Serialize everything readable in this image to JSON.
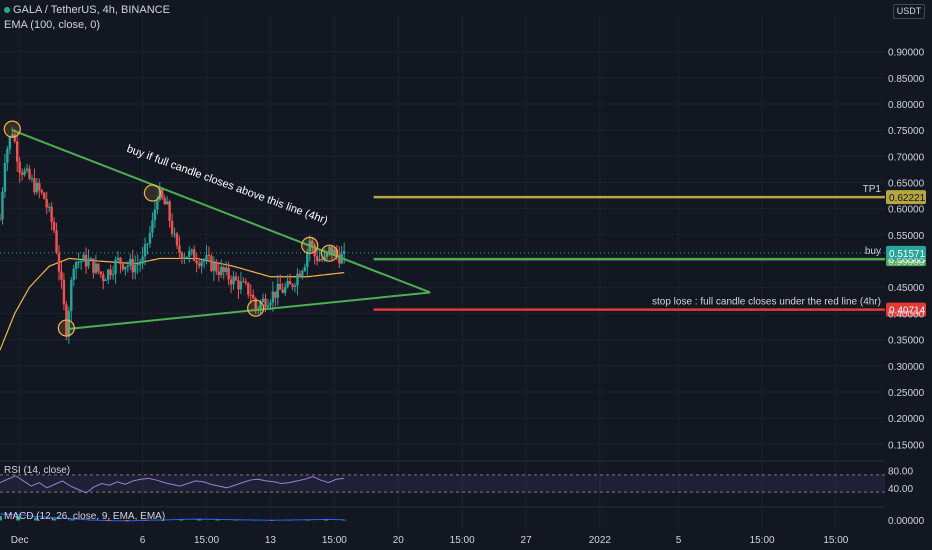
{
  "header": {
    "symbol_line": "GALA / TetherUS, 4h, BINANCE",
    "ema_line": "EMA (100, close, 0)",
    "currency": "USDT"
  },
  "colors": {
    "background": "#131722",
    "up": "#26a69a",
    "down": "#ef5350",
    "ema": "#f0b44d",
    "triangle": "#4caf50",
    "tp": "#b5a642",
    "stop": "#e53935",
    "text": "#d1d4dc",
    "grid": "#1e2230",
    "rsi": "#9c7fd1"
  },
  "chart_data": [
    {
      "type": "candlestick",
      "title": "GALA / TetherUS, 4h, BINANCE",
      "ylim": [
        0.12,
        0.97
      ],
      "y_ticks": [
        0.9,
        0.85,
        0.8,
        0.75,
        0.7,
        0.65,
        0.6,
        0.55,
        0.5,
        0.45,
        0.4,
        0.35,
        0.3,
        0.25,
        0.2,
        0.15
      ],
      "y_tick_labels": [
        "0.90000",
        "0.85000",
        "0.80000",
        "0.75000",
        "0.70000",
        "0.65000",
        "0.60000",
        "0.55000",
        "0.50000",
        "0.45000",
        "0.40000",
        "0.35000",
        "0.30000",
        "0.25000",
        "0.20000",
        "0.15000"
      ],
      "x_tick_labels": [
        "Dec",
        "6",
        "15:00",
        "13",
        "15:00",
        "20",
        "15:00",
        "27",
        "2022",
        "5",
        "15:00",
        "15:00"
      ],
      "x_tick_index": [
        8,
        58,
        84,
        110,
        136,
        162,
        188,
        214,
        244,
        276,
        310,
        340
      ],
      "grid": true,
      "price_path": [
        [
          0,
          0.58
        ],
        [
          2,
          0.7
        ],
        [
          5,
          0.75
        ],
        [
          8,
          0.68
        ],
        [
          13,
          0.65
        ],
        [
          18,
          0.62
        ],
        [
          22,
          0.56
        ],
        [
          25,
          0.45
        ],
        [
          27,
          0.37
        ],
        [
          30,
          0.5
        ],
        [
          36,
          0.5
        ],
        [
          42,
          0.47
        ],
        [
          48,
          0.5
        ],
        [
          54,
          0.49
        ],
        [
          58,
          0.5
        ],
        [
          62,
          0.57
        ],
        [
          64,
          0.63
        ],
        [
          68,
          0.6
        ],
        [
          72,
          0.52
        ],
        [
          78,
          0.51
        ],
        [
          84,
          0.5
        ],
        [
          90,
          0.48
        ],
        [
          96,
          0.46
        ],
        [
          102,
          0.44
        ],
        [
          104,
          0.41
        ],
        [
          106,
          0.42
        ],
        [
          112,
          0.44
        ],
        [
          118,
          0.45
        ],
        [
          124,
          0.5
        ],
        [
          126,
          0.54
        ],
        [
          128,
          0.51
        ],
        [
          132,
          0.5
        ],
        [
          134,
          0.52
        ],
        [
          138,
          0.51
        ],
        [
          140,
          0.505
        ]
      ],
      "ema_path": [
        [
          0,
          0.33
        ],
        [
          6,
          0.4
        ],
        [
          12,
          0.45
        ],
        [
          20,
          0.49
        ],
        [
          28,
          0.505
        ],
        [
          40,
          0.5
        ],
        [
          55,
          0.495
        ],
        [
          65,
          0.505
        ],
        [
          80,
          0.505
        ],
        [
          95,
          0.49
        ],
        [
          110,
          0.47
        ],
        [
          125,
          0.47
        ],
        [
          140,
          0.478
        ]
      ],
      "index_range": [
        0,
        360
      ],
      "triangle": {
        "upper_line": [
          [
            5,
            0.75
          ],
          [
            175,
            0.44
          ]
        ],
        "lower_line": [
          [
            27,
            0.37
          ],
          [
            175,
            0.44
          ]
        ]
      },
      "markers": [
        {
          "index": 5,
          "value": 0.752
        },
        {
          "index": 62,
          "value": 0.63
        },
        {
          "index": 27,
          "value": 0.372
        },
        {
          "index": 104,
          "value": 0.41
        },
        {
          "index": 126,
          "value": 0.53
        },
        {
          "index": 134,
          "value": 0.515
        }
      ],
      "levels": [
        {
          "name": "TP1",
          "label": "TP1",
          "value": 0.62221,
          "price_label": "0.62221",
          "color_key": "tp"
        },
        {
          "name": "buy",
          "label": "buy",
          "value": 0.50365,
          "price_label": "0.50365",
          "color_key": "triangle"
        },
        {
          "name": "stop",
          "label": "stop lose : full candle closes under the red line (4hr)",
          "value": 0.40714,
          "price_label": "0.40714",
          "color_key": "stop"
        }
      ],
      "last_price": {
        "value": 0.51571,
        "label": "0.51571"
      },
      "annotation": {
        "text": "buy if full candle closes above this line (4hr)",
        "index": 92,
        "value": 0.64,
        "angle_deg": 20
      }
    },
    {
      "type": "line",
      "title": "RSI (14, close)",
      "ylim": [
        0,
        100
      ],
      "band": [
        30,
        70
      ],
      "y_tick_labels": [
        "80.00",
        "40.00"
      ],
      "values": [
        52,
        60,
        68,
        56,
        44,
        52,
        40,
        48,
        56,
        44,
        36,
        28,
        42,
        50,
        46,
        54,
        48,
        56,
        60,
        62,
        58,
        52,
        48,
        44,
        50,
        56,
        54,
        48,
        44,
        40,
        46,
        52,
        58,
        60,
        56,
        54,
        50,
        52,
        56,
        60,
        66,
        58,
        52,
        60,
        62
      ]
    },
    {
      "type": "line",
      "title": "MACD (12, 26, close, 9, EMA, EMA)",
      "y_tick_labels": [
        "0.00000"
      ],
      "values": [
        0.02,
        0.018,
        0.012,
        0.008,
        0.004,
        0.0,
        -0.002,
        -0.003,
        -0.001,
        0.0,
        0.002,
        0.003,
        0.002,
        0.001,
        0.0,
        -0.001,
        0.0,
        0.001,
        0.002,
        0.001
      ]
    }
  ]
}
